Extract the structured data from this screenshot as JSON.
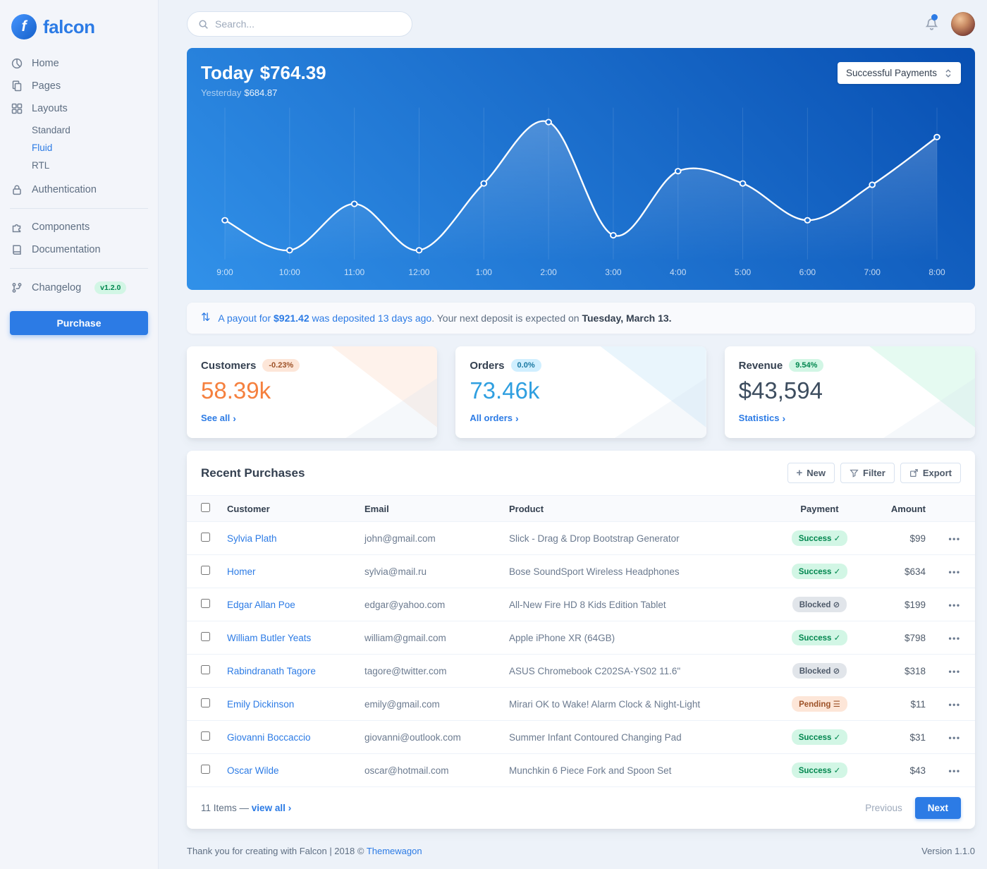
{
  "colors": {
    "primary": "#2c7be5",
    "warning_accent": "#f5803e",
    "info_accent": "#2f9fe0",
    "success_text": "#00864e",
    "chart_gradient_start": "#3191e9",
    "chart_gradient_end": "#084fb2",
    "main_background": "#edf2f9"
  },
  "brand": {
    "name": "falcon",
    "initial": "f"
  },
  "topbar": {
    "search_placeholder": "Search..."
  },
  "sidebar": {
    "items": [
      {
        "label": "Home",
        "icon": "chart-pie-icon"
      },
      {
        "label": "Pages",
        "icon": "copy-icon"
      },
      {
        "label": "Layouts",
        "icon": "grid-icon",
        "children": [
          {
            "label": "Standard",
            "active": false
          },
          {
            "label": "Fluid",
            "active": true
          },
          {
            "label": "RTL",
            "active": false
          }
        ]
      },
      {
        "label": "Authentication",
        "icon": "lock-icon"
      },
      {
        "label": "Components",
        "icon": "puzzle-icon"
      },
      {
        "label": "Documentation",
        "icon": "book-icon"
      },
      {
        "label": "Changelog",
        "icon": "code-branch-icon",
        "badge": "v1.2.0"
      }
    ],
    "purchase_label": "Purchase"
  },
  "chart_card": {
    "today_label": "Today",
    "today_value": "$764.39",
    "yesterday_label": "Yesterday",
    "yesterday_value": "$684.87",
    "select_value": "Successful Payments"
  },
  "chart_data": {
    "type": "line",
    "x": [
      "9:00",
      "10:00",
      "11:00",
      "12:00",
      "1:00",
      "2:00",
      "3:00",
      "4:00",
      "5:00",
      "6:00",
      "7:00",
      "8:00"
    ],
    "series": [
      {
        "name": "Successful Payments",
        "values": [
          25,
          3,
          37,
          3,
          52,
          97,
          14,
          61,
          52,
          25,
          51,
          86
        ]
      }
    ],
    "ylim": [
      0,
      100
    ],
    "grid": "vertical-only",
    "legend": "none",
    "line_color": "#ffffff",
    "area_fill": "white-fade-gradient"
  },
  "payout": {
    "icon_glyph": "⇅",
    "link_text_1": "A payout for",
    "amount": "$921.42",
    "link_text_2": "was deposited 13 days ago",
    "rest": ". Your next deposit is expected on",
    "date": "Tuesday, March 13."
  },
  "stats": [
    {
      "label": "Customers",
      "badge": "-0.23%",
      "badge_variant": "warning",
      "value": "58.39k",
      "link": "See all"
    },
    {
      "label": "Orders",
      "badge": "0.0%",
      "badge_variant": "info",
      "value": "73.46k",
      "link": "All orders"
    },
    {
      "label": "Revenue",
      "badge": "9.54%",
      "badge_variant": "success",
      "value": "$43,594",
      "link": "Statistics"
    }
  ],
  "purchases": {
    "title": "Recent Purchases",
    "actions": {
      "new_icon": "+",
      "new": "New",
      "filter": "Filter",
      "export": "Export"
    },
    "columns": [
      "Customer",
      "Email",
      "Product",
      "Payment",
      "Amount"
    ],
    "payment_icons": {
      "Success": "✓",
      "Blocked": "⊘",
      "Pending": "☰"
    },
    "rows": [
      {
        "customer": "Sylvia Plath",
        "email": "john@gmail.com",
        "product": "Slick - Drag & Drop Bootstrap Generator",
        "payment": "Success",
        "amount": "$99"
      },
      {
        "customer": "Homer",
        "email": "sylvia@mail.ru",
        "product": "Bose SoundSport Wireless Headphones",
        "payment": "Success",
        "amount": "$634"
      },
      {
        "customer": "Edgar Allan Poe",
        "email": "edgar@yahoo.com",
        "product": "All-New Fire HD 8 Kids Edition Tablet",
        "payment": "Blocked",
        "amount": "$199"
      },
      {
        "customer": "William Butler Yeats",
        "email": "william@gmail.com",
        "product": "Apple iPhone XR (64GB)",
        "payment": "Success",
        "amount": "$798"
      },
      {
        "customer": "Rabindranath Tagore",
        "email": "tagore@twitter.com",
        "product": "ASUS Chromebook C202SA-YS02 11.6\"",
        "payment": "Blocked",
        "amount": "$318"
      },
      {
        "customer": "Emily Dickinson",
        "email": "emily@gmail.com",
        "product": "Mirari OK to Wake! Alarm Clock & Night-Light",
        "payment": "Pending",
        "amount": "$11"
      },
      {
        "customer": "Giovanni Boccaccio",
        "email": "giovanni@outlook.com",
        "product": "Summer Infant Contoured Changing Pad",
        "payment": "Success",
        "amount": "$31"
      },
      {
        "customer": "Oscar Wilde",
        "email": "oscar@hotmail.com",
        "product": "Munchkin 6 Piece Fork and Spoon Set",
        "payment": "Success",
        "amount": "$43"
      }
    ],
    "footer": {
      "items_text": "11 Items —",
      "view_all": "view all",
      "previous": "Previous",
      "next": "Next"
    }
  },
  "footer": {
    "left_text": "Thank you for creating with Falcon | 2018 ©",
    "link": "Themewagon",
    "version": "Version 1.1.0"
  }
}
